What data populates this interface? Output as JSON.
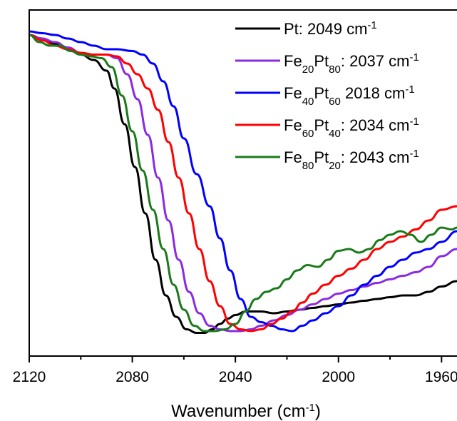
{
  "chart_data": {
    "type": "line",
    "xlabel": "Wavenumber",
    "xlabel_unit": "(cm",
    "xlabel_unit_exp": "-1",
    "xlabel_close": ")",
    "xlim": [
      2120,
      1954
    ],
    "x_reversed": true,
    "x_ticks": [
      2120,
      2080,
      2040,
      2000,
      1960
    ],
    "y_tick_labels": false,
    "legend_position": "top-right",
    "series": [
      {
        "name": "Pt: 2049 cm-1",
        "label_parts": [
          {
            "t": "Pt: 2049 cm"
          },
          {
            "t": "-1",
            "s": "sup"
          }
        ],
        "color": "#000000",
        "points": [
          [
            2120,
            0.85
          ],
          [
            2115,
            0.84
          ],
          [
            2110,
            0.825
          ],
          [
            2105,
            0.81
          ],
          [
            2100,
            0.795
          ],
          [
            2095,
            0.78
          ],
          [
            2090,
            0.75
          ],
          [
            2087,
            0.7
          ],
          [
            2083,
            0.6
          ],
          [
            2079,
            0.48
          ],
          [
            2075,
            0.35
          ],
          [
            2071,
            0.22
          ],
          [
            2067,
            0.12
          ],
          [
            2063,
            0.06
          ],
          [
            2059,
            0.025
          ],
          [
            2055,
            0.015
          ],
          [
            2052,
            0.015
          ],
          [
            2049,
            0.025
          ],
          [
            2046,
            0.04
          ],
          [
            2043,
            0.055
          ],
          [
            2040,
            0.065
          ],
          [
            2036,
            0.075
          ],
          [
            2030,
            0.075
          ],
          [
            2025,
            0.07
          ],
          [
            2020,
            0.075
          ],
          [
            2015,
            0.08
          ],
          [
            2010,
            0.085
          ],
          [
            2005,
            0.09
          ],
          [
            2000,
            0.095
          ],
          [
            1995,
            0.1
          ],
          [
            1990,
            0.105
          ],
          [
            1985,
            0.11
          ],
          [
            1980,
            0.115
          ],
          [
            1975,
            0.12
          ],
          [
            1970,
            0.12
          ],
          [
            1965,
            0.13
          ],
          [
            1960,
            0.145
          ],
          [
            1954,
            0.16
          ]
        ]
      },
      {
        "name": "Fe20Pt80: 2037 cm-1",
        "label_parts": [
          {
            "t": "Fe"
          },
          {
            "t": "20",
            "s": "sub"
          },
          {
            "t": "Pt"
          },
          {
            "t": "80",
            "s": "sub"
          },
          {
            "t": ": 2037 cm"
          },
          {
            "t": "-1",
            "s": "sup"
          }
        ],
        "color": "#8a2be2",
        "points": [
          [
            2120,
            0.85
          ],
          [
            2115,
            0.84
          ],
          [
            2110,
            0.83
          ],
          [
            2105,
            0.815
          ],
          [
            2100,
            0.8
          ],
          [
            2095,
            0.795
          ],
          [
            2090,
            0.795
          ],
          [
            2086,
            0.785
          ],
          [
            2082,
            0.74
          ],
          [
            2078,
            0.67
          ],
          [
            2074,
            0.57
          ],
          [
            2070,
            0.45
          ],
          [
            2066,
            0.33
          ],
          [
            2062,
            0.22
          ],
          [
            2058,
            0.13
          ],
          [
            2054,
            0.07
          ],
          [
            2050,
            0.035
          ],
          [
            2046,
            0.025
          ],
          [
            2042,
            0.02
          ],
          [
            2038,
            0.02
          ],
          [
            2034,
            0.025
          ],
          [
            2030,
            0.035
          ],
          [
            2025,
            0.05
          ],
          [
            2020,
            0.065
          ],
          [
            2015,
            0.08
          ],
          [
            2010,
            0.095
          ],
          [
            2005,
            0.11
          ],
          [
            2000,
            0.125
          ],
          [
            1995,
            0.135
          ],
          [
            1990,
            0.145
          ],
          [
            1985,
            0.155
          ],
          [
            1980,
            0.165
          ],
          [
            1975,
            0.175
          ],
          [
            1970,
            0.185
          ],
          [
            1965,
            0.2
          ],
          [
            1960,
            0.23
          ],
          [
            1954,
            0.25
          ]
        ]
      },
      {
        "name": "Fe40Pt60 2018 cm-1",
        "label_parts": [
          {
            "t": "Fe"
          },
          {
            "t": "40",
            "s": "sub"
          },
          {
            "t": "Pt"
          },
          {
            "t": "60",
            "s": "sub"
          },
          {
            "t": " 2018 cm"
          },
          {
            "t": "-1",
            "s": "sup"
          }
        ],
        "color": "#0000ff",
        "points": [
          [
            2120,
            0.86
          ],
          [
            2115,
            0.855
          ],
          [
            2110,
            0.85
          ],
          [
            2105,
            0.84
          ],
          [
            2100,
            0.83
          ],
          [
            2095,
            0.82
          ],
          [
            2090,
            0.81
          ],
          [
            2086,
            0.81
          ],
          [
            2080,
            0.805
          ],
          [
            2076,
            0.795
          ],
          [
            2072,
            0.77
          ],
          [
            2068,
            0.72
          ],
          [
            2064,
            0.65
          ],
          [
            2060,
            0.56
          ],
          [
            2055,
            0.46
          ],
          [
            2050,
            0.37
          ],
          [
            2046,
            0.28
          ],
          [
            2042,
            0.19
          ],
          [
            2038,
            0.11
          ],
          [
            2034,
            0.06
          ],
          [
            2030,
            0.045
          ],
          [
            2026,
            0.035
          ],
          [
            2022,
            0.025
          ],
          [
            2018,
            0.02
          ],
          [
            2014,
            0.035
          ],
          [
            2010,
            0.05
          ],
          [
            2005,
            0.07
          ],
          [
            2000,
            0.09
          ],
          [
            1995,
            0.12
          ],
          [
            1990,
            0.15
          ],
          [
            1985,
            0.175
          ],
          [
            1980,
            0.2
          ],
          [
            1975,
            0.22
          ],
          [
            1970,
            0.24
          ],
          [
            1965,
            0.25
          ],
          [
            1960,
            0.27
          ],
          [
            1954,
            0.3
          ]
        ]
      },
      {
        "name": "Fe60Pt40: 2034 cm-1",
        "label_parts": [
          {
            "t": "Fe"
          },
          {
            "t": "60",
            "s": "sub"
          },
          {
            "t": "Pt"
          },
          {
            "t": "40",
            "s": "sub"
          },
          {
            "t": ": 2034 cm"
          },
          {
            "t": "-1",
            "s": "sup"
          }
        ],
        "color": "#ff0000",
        "points": [
          [
            2120,
            0.85
          ],
          [
            2115,
            0.835
          ],
          [
            2110,
            0.82
          ],
          [
            2105,
            0.81
          ],
          [
            2100,
            0.8
          ],
          [
            2095,
            0.795
          ],
          [
            2090,
            0.795
          ],
          [
            2086,
            0.79
          ],
          [
            2082,
            0.77
          ],
          [
            2078,
            0.74
          ],
          [
            2074,
            0.7
          ],
          [
            2070,
            0.64
          ],
          [
            2066,
            0.55
          ],
          [
            2062,
            0.45
          ],
          [
            2058,
            0.35
          ],
          [
            2054,
            0.25
          ],
          [
            2050,
            0.16
          ],
          [
            2046,
            0.09
          ],
          [
            2042,
            0.04
          ],
          [
            2038,
            0.025
          ],
          [
            2034,
            0.02
          ],
          [
            2030,
            0.025
          ],
          [
            2026,
            0.04
          ],
          [
            2022,
            0.055
          ],
          [
            2018,
            0.075
          ],
          [
            2014,
            0.1
          ],
          [
            2010,
            0.125
          ],
          [
            2005,
            0.15
          ],
          [
            2000,
            0.175
          ],
          [
            1995,
            0.195
          ],
          [
            1990,
            0.22
          ],
          [
            1985,
            0.25
          ],
          [
            1980,
            0.27
          ],
          [
            1975,
            0.285
          ],
          [
            1970,
            0.305
          ],
          [
            1965,
            0.33
          ],
          [
            1960,
            0.36
          ],
          [
            1954,
            0.37
          ]
        ]
      },
      {
        "name": "Fe80Pt20: 2043 cm-1",
        "label_parts": [
          {
            "t": "Fe"
          },
          {
            "t": "80",
            "s": "sub"
          },
          {
            "t": "Pt"
          },
          {
            "t": "20",
            "s": "sub"
          },
          {
            "t": ": 2043 cm"
          },
          {
            "t": "-1",
            "s": "sup"
          }
        ],
        "color": "#1a7a1a",
        "points": [
          [
            2120,
            0.85
          ],
          [
            2116,
            0.83
          ],
          [
            2112,
            0.82
          ],
          [
            2108,
            0.82
          ],
          [
            2104,
            0.805
          ],
          [
            2100,
            0.795
          ],
          [
            2096,
            0.79
          ],
          [
            2092,
            0.785
          ],
          [
            2088,
            0.76
          ],
          [
            2084,
            0.68
          ],
          [
            2080,
            0.58
          ],
          [
            2076,
            0.47
          ],
          [
            2072,
            0.36
          ],
          [
            2068,
            0.25
          ],
          [
            2064,
            0.15
          ],
          [
            2060,
            0.08
          ],
          [
            2056,
            0.035
          ],
          [
            2052,
            0.02
          ],
          [
            2048,
            0.02
          ],
          [
            2044,
            0.025
          ],
          [
            2040,
            0.04
          ],
          [
            2036,
            0.075
          ],
          [
            2032,
            0.11
          ],
          [
            2028,
            0.13
          ],
          [
            2024,
            0.14
          ],
          [
            2020,
            0.165
          ],
          [
            2016,
            0.19
          ],
          [
            2012,
            0.205
          ],
          [
            2008,
            0.2
          ],
          [
            2004,
            0.22
          ],
          [
            2000,
            0.245
          ],
          [
            1996,
            0.25
          ],
          [
            1992,
            0.24
          ],
          [
            1988,
            0.25
          ],
          [
            1984,
            0.275
          ],
          [
            1980,
            0.29
          ],
          [
            1976,
            0.3
          ],
          [
            1972,
            0.29
          ],
          [
            1968,
            0.27
          ],
          [
            1964,
            0.29
          ],
          [
            1960,
            0.31
          ],
          [
            1956,
            0.305
          ],
          [
            1954,
            0.31
          ]
        ]
      }
    ]
  }
}
